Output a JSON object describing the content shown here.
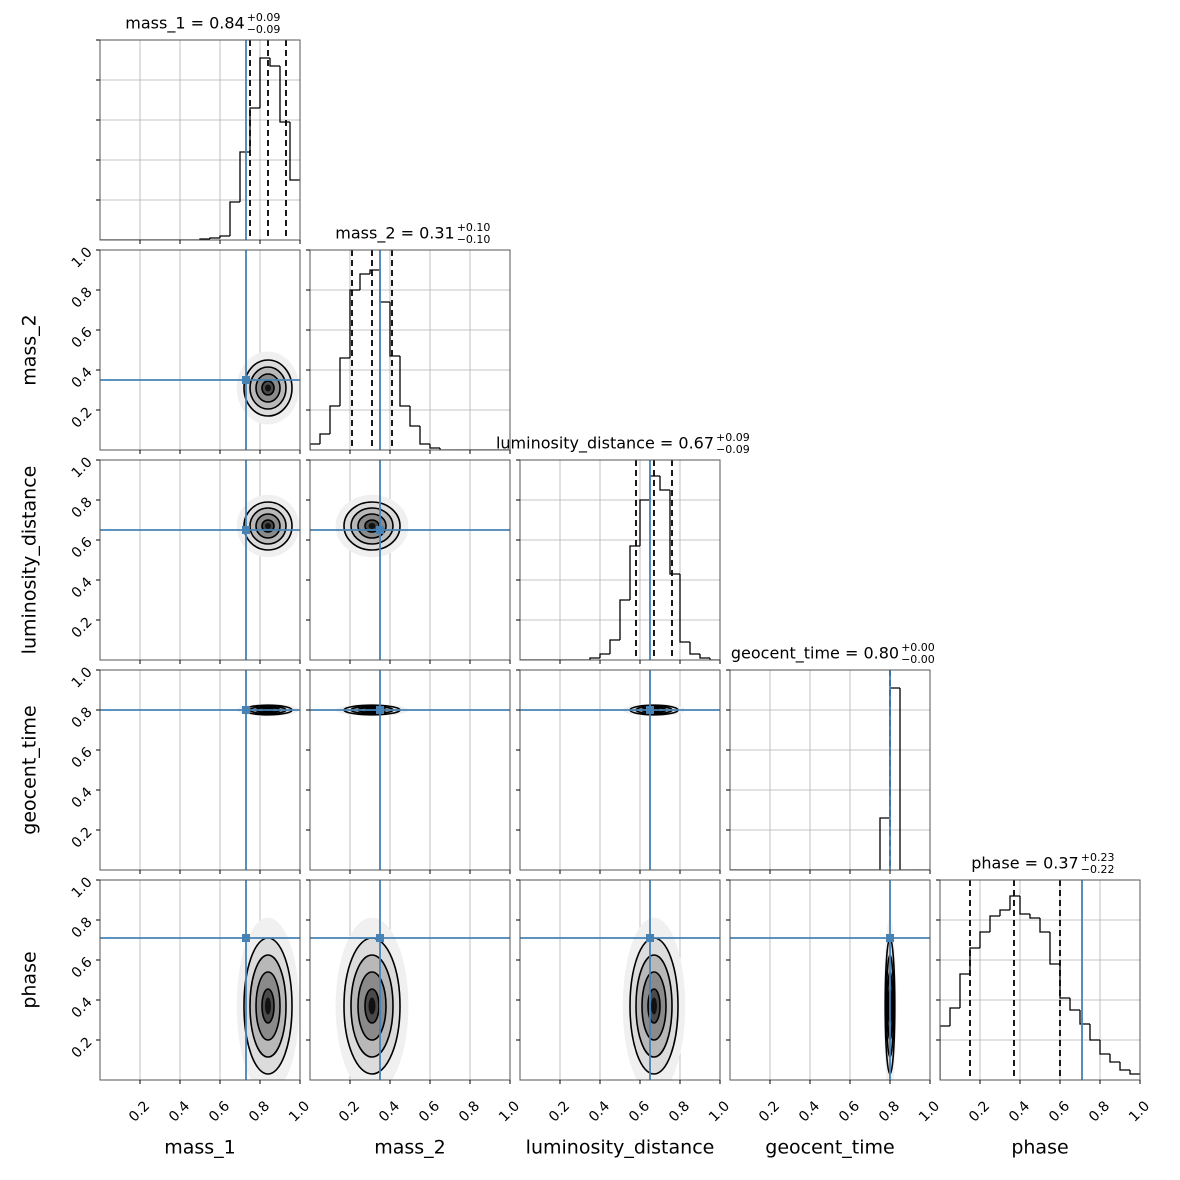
{
  "chart_data": {
    "type": "corner",
    "xlim": [
      0,
      1
    ],
    "ylim": [
      0,
      1
    ],
    "hist_ylim": [
      0,
      1
    ],
    "ticks": [
      0.2,
      0.4,
      0.6,
      0.8,
      {
        "value": 1,
        "label": "1.0"
      }
    ],
    "bins": [
      0,
      0.05,
      0.1,
      0.15,
      0.2,
      0.25,
      0.3,
      0.35,
      0.4,
      0.45,
      0.5,
      0.55,
      0.6,
      0.65,
      0.7,
      0.75,
      0.8,
      0.85,
      0.9,
      0.95,
      1
    ],
    "truth_color": "#4682b4",
    "grid": true,
    "parameters": [
      {
        "name": "mass_1",
        "title": "mass_1 = 0.84",
        "upper": "+0.09",
        "lower": "−0.09",
        "quantiles": [
          0.75,
          0.84,
          0.93
        ],
        "truth": 0.73,
        "sigma": 0.06,
        "values": [
          0,
          0,
          0,
          0,
          0,
          0,
          0,
          0,
          0,
          0,
          0.005,
          0.01,
          0.02,
          0.19,
          0.44,
          0.66,
          0.91,
          0.87,
          0.59,
          0.3
        ]
      },
      {
        "name": "mass_2",
        "title": "mass_2 = 0.31",
        "upper": "+0.10",
        "lower": "−0.10",
        "quantiles": [
          0.21,
          0.31,
          0.41
        ],
        "truth": 0.35,
        "sigma": 0.07,
        "values": [
          0.03,
          0.08,
          0.22,
          0.46,
          0.8,
          0.88,
          0.9,
          0.74,
          0.47,
          0.22,
          0.12,
          0.03,
          0.01,
          0,
          0,
          0,
          0,
          0,
          0,
          0
        ]
      },
      {
        "name": "luminosity_distance",
        "title": "luminosity_distance = 0.67",
        "upper": "+0.09",
        "lower": "−0.09",
        "quantiles": [
          0.58,
          0.67,
          0.76
        ],
        "truth": 0.65,
        "sigma": 0.06,
        "values": [
          0,
          0,
          0,
          0,
          0,
          0,
          0,
          0.01,
          0.03,
          0.1,
          0.3,
          0.57,
          0.8,
          0.92,
          0.85,
          0.43,
          0.09,
          0.03,
          0.01,
          0
        ]
      },
      {
        "name": "geocent_time",
        "title": "geocent_time = 0.80",
        "upper": "+0.00",
        "lower": "−0.00",
        "quantiles": [
          0.8,
          0.8,
          0.8
        ],
        "truth": 0.8,
        "sigma": 0.012,
        "values": [
          0,
          0,
          0,
          0,
          0,
          0,
          0,
          0,
          0,
          0,
          0,
          0,
          0,
          0,
          0,
          0.26,
          0.91,
          0,
          0,
          0
        ]
      },
      {
        "name": "phase",
        "title": "phase = 0.37",
        "upper": "+0.23",
        "lower": "−0.22",
        "quantiles": [
          0.15,
          0.37,
          0.6
        ],
        "truth": 0.71,
        "sigma": 0.17,
        "values": [
          0.27,
          0.36,
          0.53,
          0.66,
          0.74,
          0.82,
          0.85,
          0.92,
          0.83,
          0.81,
          0.74,
          0.58,
          0.41,
          0.35,
          0.28,
          0.2,
          0.13,
          0.09,
          0.05,
          0.03
        ]
      }
    ]
  }
}
